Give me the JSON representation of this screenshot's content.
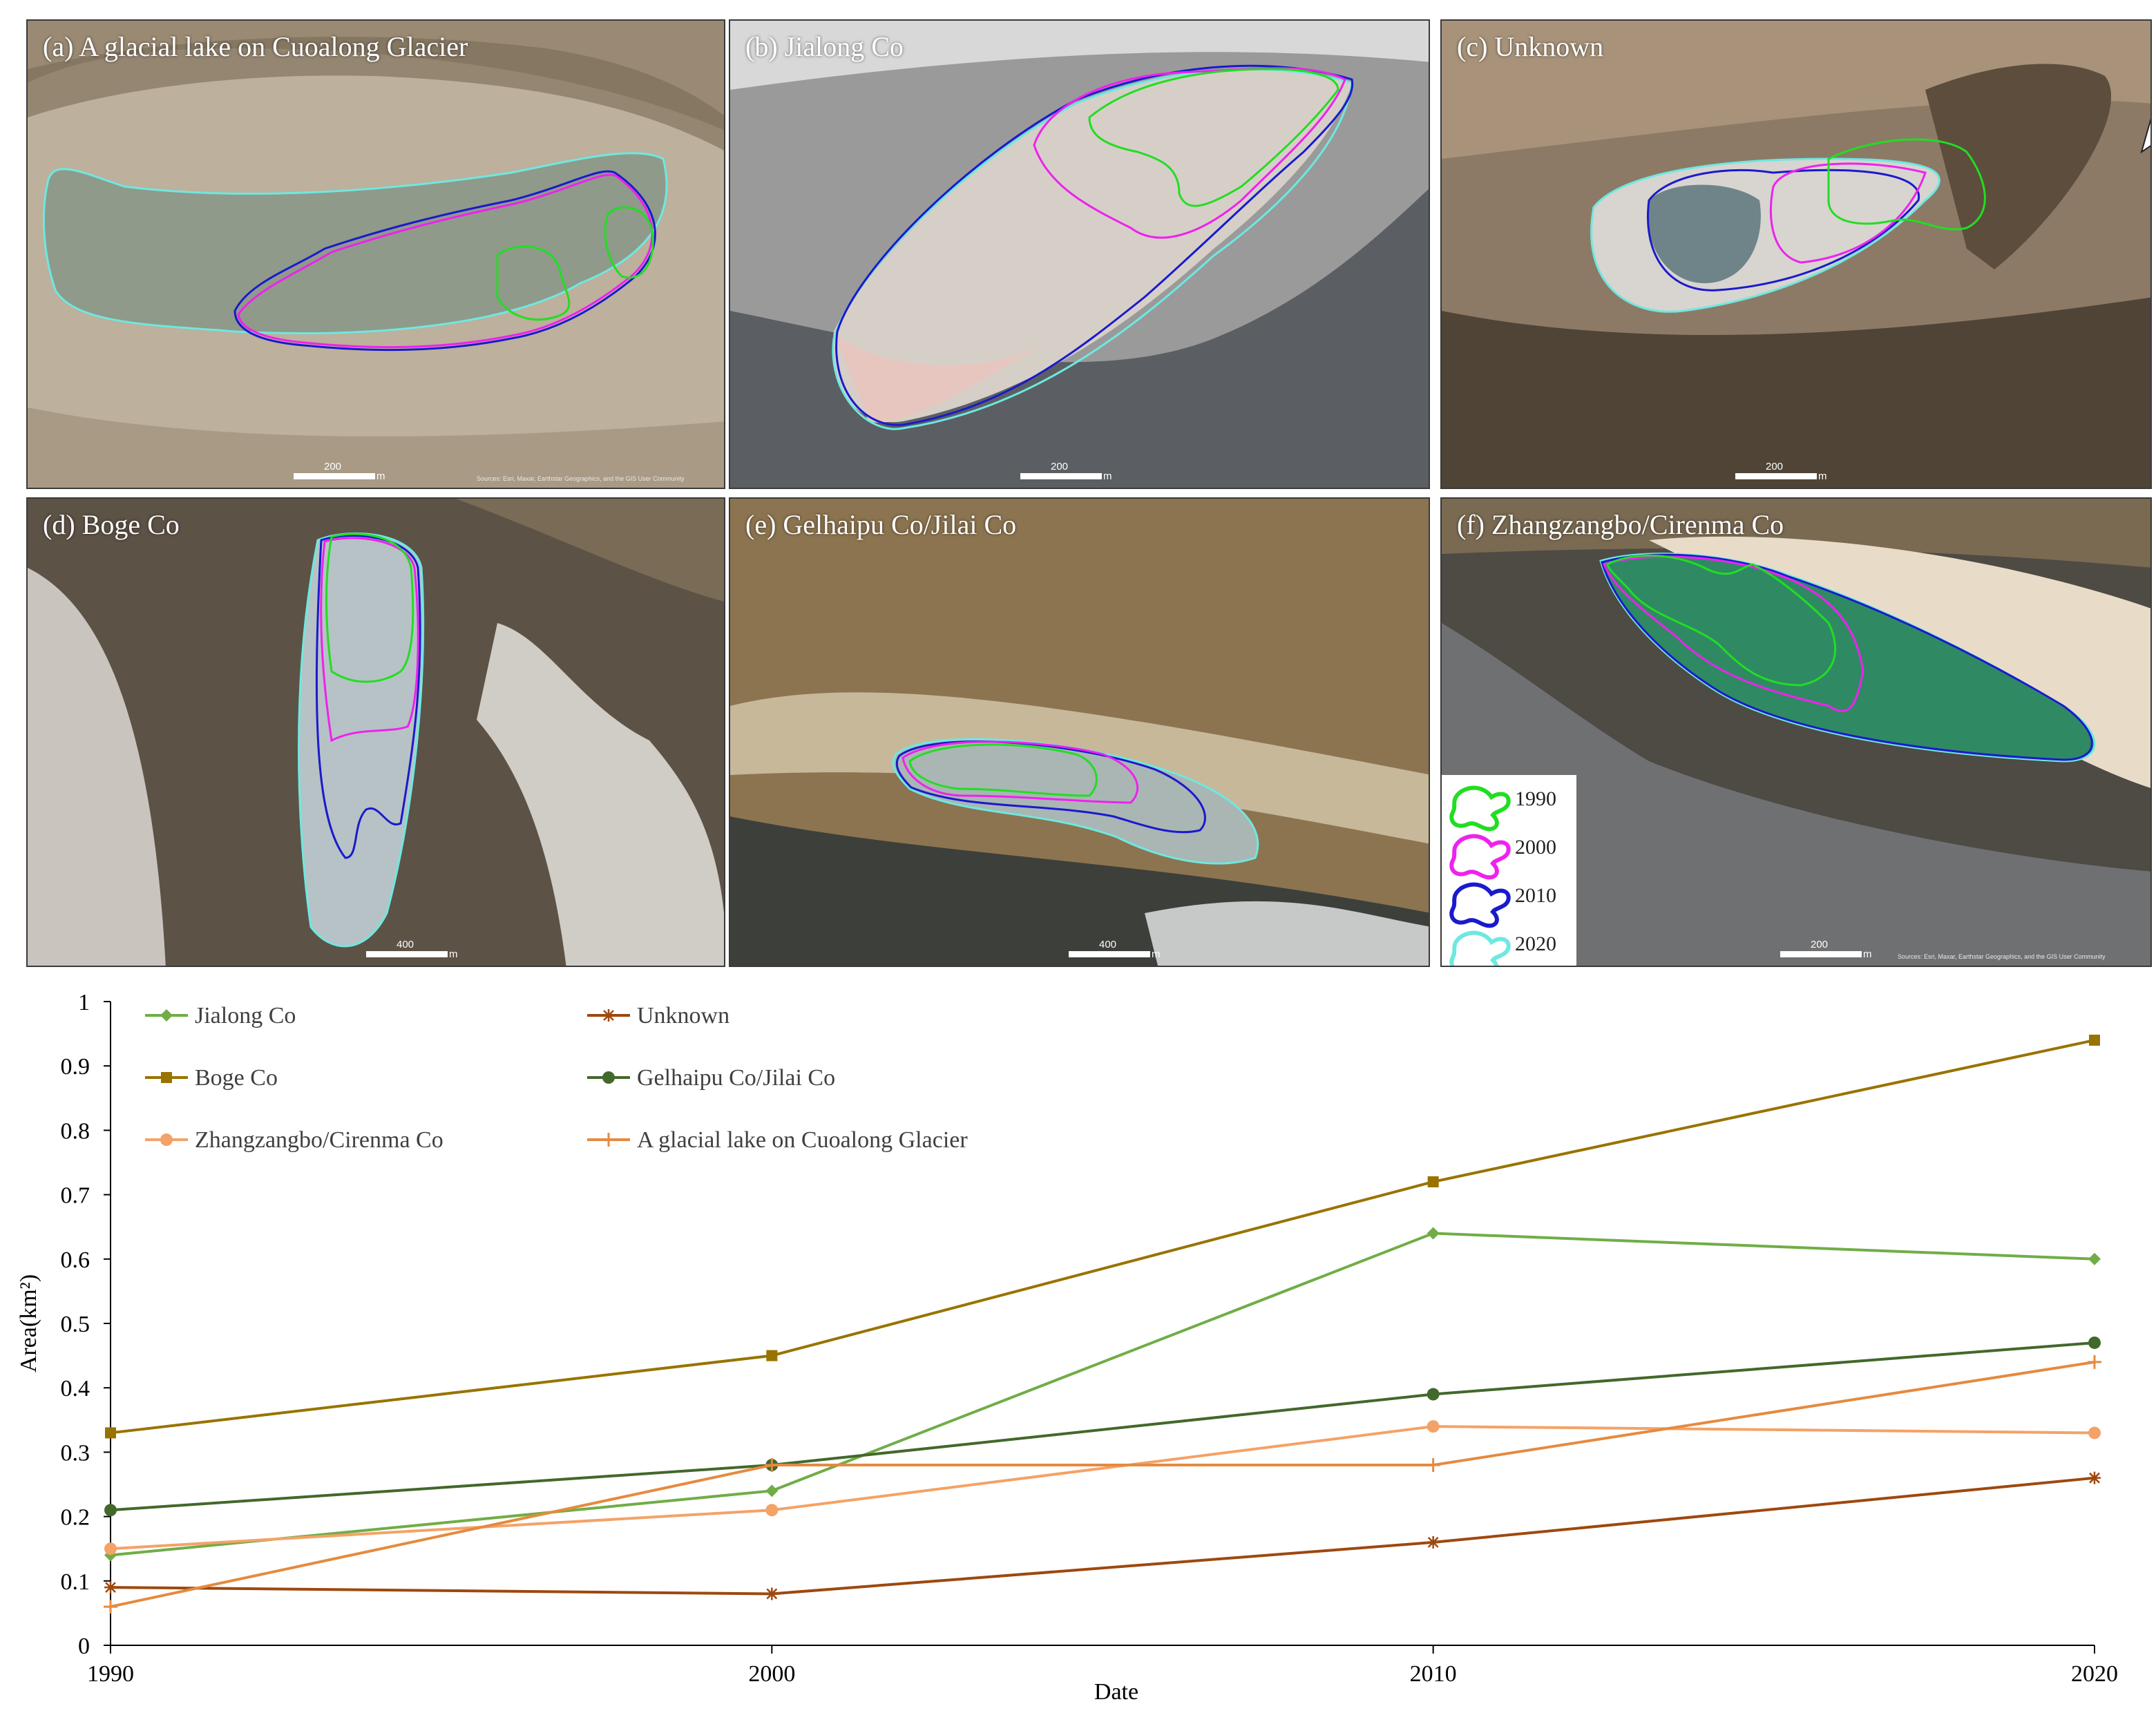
{
  "panels": [
    {
      "id": "a",
      "label": "(a) A glacial  lake on Cuoalong  Glacier",
      "scale_value": "200",
      "scale_unit": "m",
      "attribution": "Sources: Esri, Maxar, Earthstar Geographics, and the GIS User Community"
    },
    {
      "id": "b",
      "label": "(b) Jialong  Co",
      "scale_value": "200",
      "scale_unit": "m"
    },
    {
      "id": "c",
      "label": "(c) Unknown",
      "scale_value": "200",
      "scale_unit": "m"
    },
    {
      "id": "d",
      "label": "(d) Boge Co",
      "scale_value": "400",
      "scale_unit": "m"
    },
    {
      "id": "e",
      "label": "(e) Gelhaipu Co/Jilai Co",
      "scale_value": "400",
      "scale_unit": "m"
    },
    {
      "id": "f",
      "label": "(f) Zhangzangbo/Cirenma Co",
      "scale_value": "200",
      "scale_unit": "m",
      "attribution": "Sources: Esri, Maxar, Earthstar Geographics, and the GIS User Community"
    }
  ],
  "north_arrow": "N",
  "outline_legend": [
    {
      "year": "1990",
      "color": "#22dd22"
    },
    {
      "year": "2000",
      "color": "#ee22ee"
    },
    {
      "year": "2010",
      "color": "#1a1acc"
    },
    {
      "year": "2020",
      "color": "#6ee8e0"
    }
  ],
  "chart_data": {
    "type": "line",
    "categories": [
      "1990",
      "2000",
      "2010",
      "2020"
    ],
    "xlabel": "Date",
    "ylabel": "Area(km²)",
    "ylim": [
      0,
      1
    ],
    "yticks": [
      "0",
      "0.1",
      "0.2",
      "0.3",
      "0.4",
      "0.5",
      "0.6",
      "0.7",
      "0.8",
      "0.9",
      "1"
    ],
    "legend_placement": "top-left, two columns",
    "grid": false,
    "series": [
      {
        "name": "Jialong Co",
        "values": [
          0.14,
          0.24,
          0.64,
          0.6
        ],
        "color": "#70ad47",
        "marker": "diamond"
      },
      {
        "name": "Unknown",
        "values": [
          0.09,
          0.08,
          0.16,
          0.26
        ],
        "color": "#9e480e",
        "marker": "star"
      },
      {
        "name": "Boge Co",
        "values": [
          0.33,
          0.45,
          0.72,
          0.94
        ],
        "color": "#997300",
        "marker": "square"
      },
      {
        "name": "Gelhaipu Co/Jilai Co",
        "values": [
          0.21,
          0.28,
          0.39,
          0.47
        ],
        "color": "#43682b",
        "marker": "circle"
      },
      {
        "name": "Zhangzangbo/Cirenma Co",
        "values": [
          0.15,
          0.21,
          0.34,
          0.33
        ],
        "color": "#f4a267",
        "marker": "circle"
      },
      {
        "name": "A glacial lake on Cuoalong Glacier",
        "values": [
          0.06,
          0.28,
          0.28,
          0.44
        ],
        "color": "#e58a3f",
        "marker": "plus"
      }
    ]
  }
}
